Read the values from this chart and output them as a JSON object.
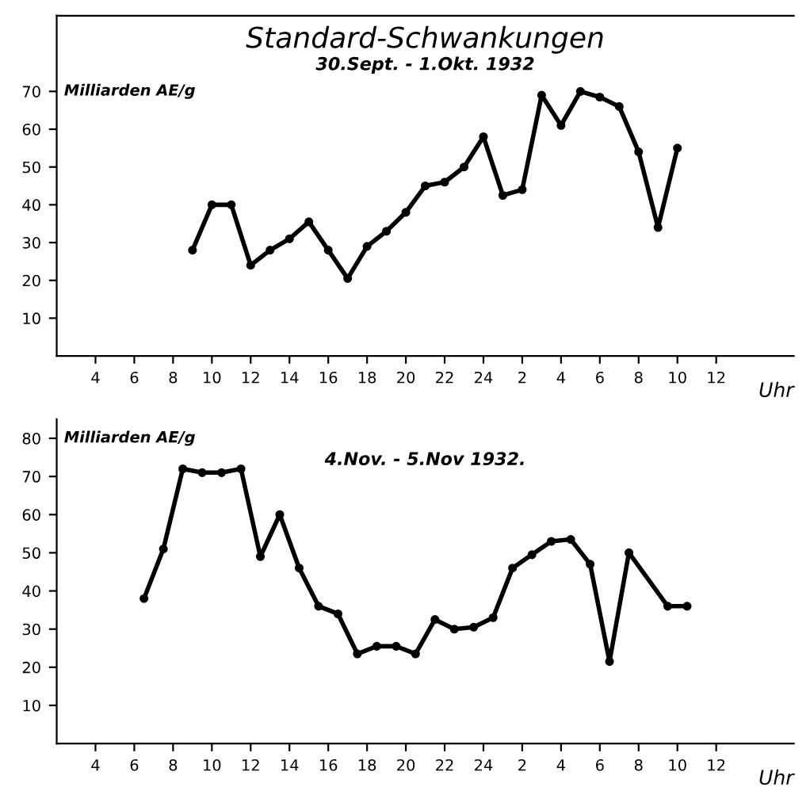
{
  "chart_data": [
    {
      "type": "line",
      "title": "Standard-Schwankungen",
      "subtitle": "30.Sept. - 1.Okt. 1932",
      "ylabel": "Milliarden AE/g",
      "xlabel": "Uhr",
      "x": [
        "1932-09-30T09:00",
        "1932-09-30T10:00",
        "1932-09-30T11:00",
        "1932-09-30T12:00",
        "1932-09-30T13:00",
        "1932-09-30T14:00",
        "1932-09-30T15:00",
        "1932-09-30T16:00",
        "1932-09-30T17:00",
        "1932-09-30T18:00",
        "1932-09-30T19:00",
        "1932-09-30T20:00",
        "1932-09-30T21:00",
        "1932-09-30T22:00",
        "1932-09-30T23:00",
        "1932-10-01T00:00",
        "1932-10-01T01:00",
        "1932-10-01T02:00",
        "1932-10-01T03:00",
        "1932-10-01T04:00",
        "1932-10-01T05:00",
        "1932-10-01T06:00",
        "1932-10-01T07:00",
        "1932-10-01T08:00",
        "1932-10-01T09:00",
        "1932-10-01T10:00"
      ],
      "series": [
        {
          "color": "#000000",
          "values": [
            28,
            40,
            40,
            24,
            28,
            31,
            35.5,
            28,
            20.5,
            29,
            33,
            38,
            45,
            46,
            50,
            58,
            42.5,
            44,
            69,
            61,
            70,
            68.5,
            66,
            54,
            34,
            55
          ]
        }
      ],
      "xlim": [
        "1932-09-30T02:00",
        "1932-10-01T16:00"
      ],
      "ylim": [
        0,
        90
      ],
      "xticks": [
        {
          "value": "1932-09-30T04:00",
          "label": "4"
        },
        {
          "value": "1932-09-30T06:00",
          "label": "6"
        },
        {
          "value": "1932-09-30T08:00",
          "label": "8"
        },
        {
          "value": "1932-09-30T10:00",
          "label": "10"
        },
        {
          "value": "1932-09-30T12:00",
          "label": "12"
        },
        {
          "value": "1932-09-30T14:00",
          "label": "14"
        },
        {
          "value": "1932-09-30T16:00",
          "label": "16"
        },
        {
          "value": "1932-09-30T18:00",
          "label": "18"
        },
        {
          "value": "1932-09-30T20:00",
          "label": "20"
        },
        {
          "value": "1932-09-30T22:00",
          "label": "22"
        },
        {
          "value": "1932-10-01T00:00",
          "label": "24"
        },
        {
          "value": "1932-10-01T02:00",
          "label": "2"
        },
        {
          "value": "1932-10-01T04:00",
          "label": "4"
        },
        {
          "value": "1932-10-01T06:00",
          "label": "6"
        },
        {
          "value": "1932-10-01T08:00",
          "label": "8"
        },
        {
          "value": "1932-10-01T10:00",
          "label": "10"
        },
        {
          "value": "1932-10-01T12:00",
          "label": "12"
        }
      ],
      "yticks": [
        10,
        20,
        30,
        40,
        50,
        60,
        70
      ],
      "marker": "circle",
      "line_style": "solid"
    },
    {
      "type": "line",
      "title": "4.Nov. - 5.Nov 1932.",
      "ylabel": "Milliarden AE/g",
      "xlabel": "Uhr",
      "x": [
        "1932-11-04T06:30",
        "1932-11-04T07:30",
        "1932-11-04T08:30",
        "1932-11-04T09:30",
        "1932-11-04T10:30",
        "1932-11-04T11:30",
        "1932-11-04T12:30",
        "1932-11-04T13:30",
        "1932-11-04T14:30",
        "1932-11-04T15:30",
        "1932-11-04T16:30",
        "1932-11-04T17:30",
        "1932-11-04T18:30",
        "1932-11-04T19:30",
        "1932-11-04T20:30",
        "1932-11-04T21:30",
        "1932-11-04T22:30",
        "1932-11-04T23:30",
        "1932-11-05T00:30",
        "1932-11-05T01:30",
        "1932-11-05T02:30",
        "1932-11-05T03:30",
        "1932-11-05T04:30",
        "1932-11-05T05:30",
        "1932-11-05T06:30",
        "1932-11-05T07:30",
        "1932-11-05T09:30",
        "1932-11-05T10:30"
      ],
      "series": [
        {
          "color": "#000000",
          "values": [
            38,
            51,
            72,
            71,
            71,
            72,
            49,
            60,
            46,
            36,
            34,
            23.5,
            25.5,
            25.5,
            23.5,
            32.5,
            30,
            30.5,
            33,
            46,
            49.5,
            53,
            53.5,
            47,
            21.5,
            50,
            36,
            36
          ]
        }
      ],
      "xlim": [
        "1932-11-04T02:00",
        "1932-11-05T16:00"
      ],
      "ylim": [
        0,
        85
      ],
      "xticks": [
        {
          "value": "1932-11-04T04:00",
          "label": "4"
        },
        {
          "value": "1932-11-04T06:00",
          "label": "6"
        },
        {
          "value": "1932-11-04T08:00",
          "label": "8"
        },
        {
          "value": "1932-11-04T10:00",
          "label": "10"
        },
        {
          "value": "1932-11-04T12:00",
          "label": "12"
        },
        {
          "value": "1932-11-04T14:00",
          "label": "14"
        },
        {
          "value": "1932-11-04T16:00",
          "label": "16"
        },
        {
          "value": "1932-11-04T18:00",
          "label": "18"
        },
        {
          "value": "1932-11-04T20:00",
          "label": "20"
        },
        {
          "value": "1932-11-04T22:00",
          "label": "22"
        },
        {
          "value": "1932-11-05T00:00",
          "label": "24"
        },
        {
          "value": "1932-11-05T02:00",
          "label": "2"
        },
        {
          "value": "1932-11-05T04:00",
          "label": "4"
        },
        {
          "value": "1932-11-05T06:00",
          "label": "6"
        },
        {
          "value": "1932-11-05T08:00",
          "label": "8"
        },
        {
          "value": "1932-11-05T10:00",
          "label": "10"
        },
        {
          "value": "1932-11-05T12:00",
          "label": "12"
        }
      ],
      "yticks": [
        10,
        20,
        30,
        40,
        50,
        60,
        70,
        80
      ],
      "marker": "circle",
      "line_style": "solid"
    }
  ]
}
